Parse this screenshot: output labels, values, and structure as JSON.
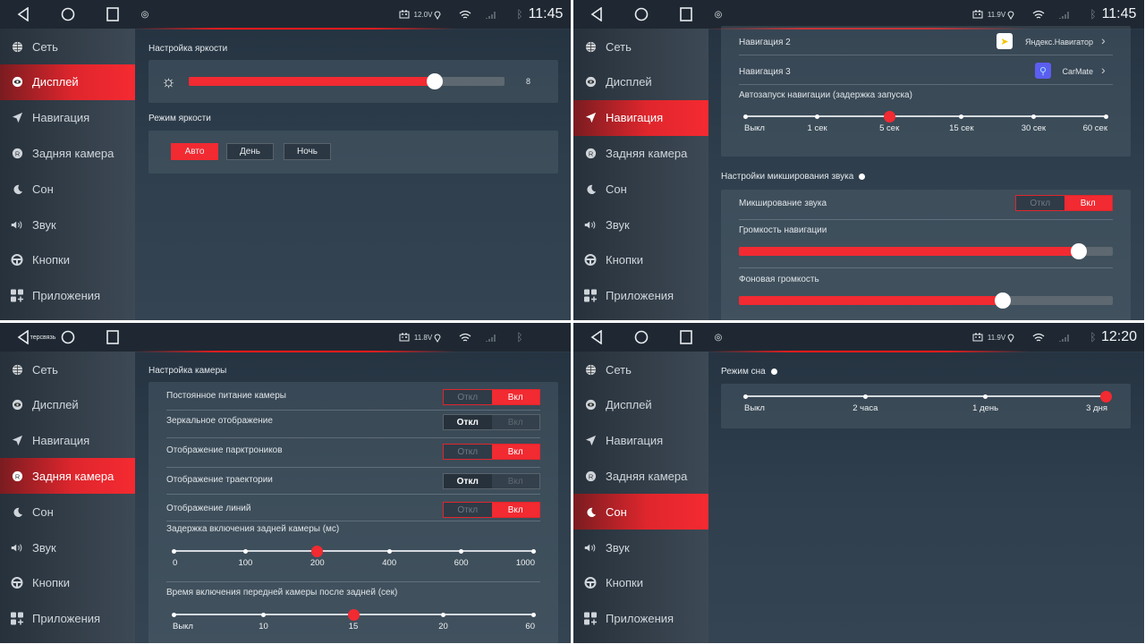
{
  "colors": {
    "accent": "#f22a31",
    "statusbar": "#1f2832",
    "sidebar": "#313c47",
    "content": "#2e3d4b"
  },
  "sidebar_items": [
    {
      "label": "Сеть",
      "icon": "globe-icon"
    },
    {
      "label": "Дисплей",
      "icon": "eye-icon"
    },
    {
      "label": "Навигация",
      "icon": "navigation-arrow-icon"
    },
    {
      "label": "Задняя камера",
      "icon": "rear-camera-icon"
    },
    {
      "label": "Сон",
      "icon": "moon-icon"
    },
    {
      "label": "Звук",
      "icon": "speaker-icon"
    },
    {
      "label": "Кнопки",
      "icon": "steering-wheel-icon"
    },
    {
      "label": "Приложения",
      "icon": "apps-icon"
    }
  ],
  "panels": [
    {
      "status": {
        "voltage": "12.0V",
        "time": "11:45"
      },
      "active_index": 1,
      "display": {
        "brightness_title": "Настройка яркости",
        "brightness_value": "8",
        "brightness_fraction": 0.78,
        "mode_title": "Режим яркости",
        "modes": [
          "Авто",
          "День",
          "Ночь"
        ],
        "selected_mode": 0
      }
    },
    {
      "status": {
        "voltage": "11.9V",
        "time": "11:45"
      },
      "active_index": 2,
      "navigation": {
        "rows": [
          {
            "label": "Навигация 2",
            "app": "Яндекс.Навигатор",
            "icon": "yandex-navigator-icon"
          },
          {
            "label": "Навигация 3",
            "app": "CarMate",
            "icon": "carmate-icon"
          }
        ],
        "autostart_title": "Автозапуск навигации (задержка запуска)",
        "autostart_stops": [
          "Выкл",
          "1 сек",
          "5 сек",
          "15 сек",
          "30 сек",
          "60 сек"
        ],
        "autostart_selected": 2,
        "mix_title": "Настройки микширования звука",
        "mix_label": "Микширование звука",
        "mix_state": "on",
        "nav_volume_label": "Громкость навигации",
        "nav_volume_fraction": 0.91,
        "bg_volume_label": "Фоновая громкость",
        "bg_volume_fraction": 0.705
      }
    },
    {
      "status": {
        "voltage": "11.8V",
        "overlay": "терсвязь"
      },
      "active_index": 3,
      "camera": {
        "title": "Настройка камеры",
        "toggles": [
          {
            "label": "Постоянное питание камеры",
            "state": "on"
          },
          {
            "label": "Зеркальное отображение",
            "state": "off"
          },
          {
            "label": "Отображение парктроников",
            "state": "on"
          },
          {
            "label": "Отображение траектории",
            "state": "off"
          },
          {
            "label": "Отображение линий",
            "state": "on"
          }
        ],
        "delay_title": "Задержка включения задней камеры (мс)",
        "delay_stops": [
          "0",
          "100",
          "200",
          "400",
          "600",
          "1000"
        ],
        "delay_selected": 2,
        "front_title": "Время включения передней камеры после задней (сек)",
        "front_stops": [
          "Выкл",
          "10",
          "15",
          "20",
          "60"
        ],
        "front_selected": 2
      }
    },
    {
      "status": {
        "voltage": "11.9V",
        "time": "12:20"
      },
      "active_index": 4,
      "sleep": {
        "title": "Режим сна",
        "stops": [
          "Выкл",
          "2 часа",
          "1 день",
          "3 дня"
        ],
        "selected": 3
      }
    }
  ],
  "toggle_labels": {
    "off": "Откл",
    "on": "Вкл"
  }
}
